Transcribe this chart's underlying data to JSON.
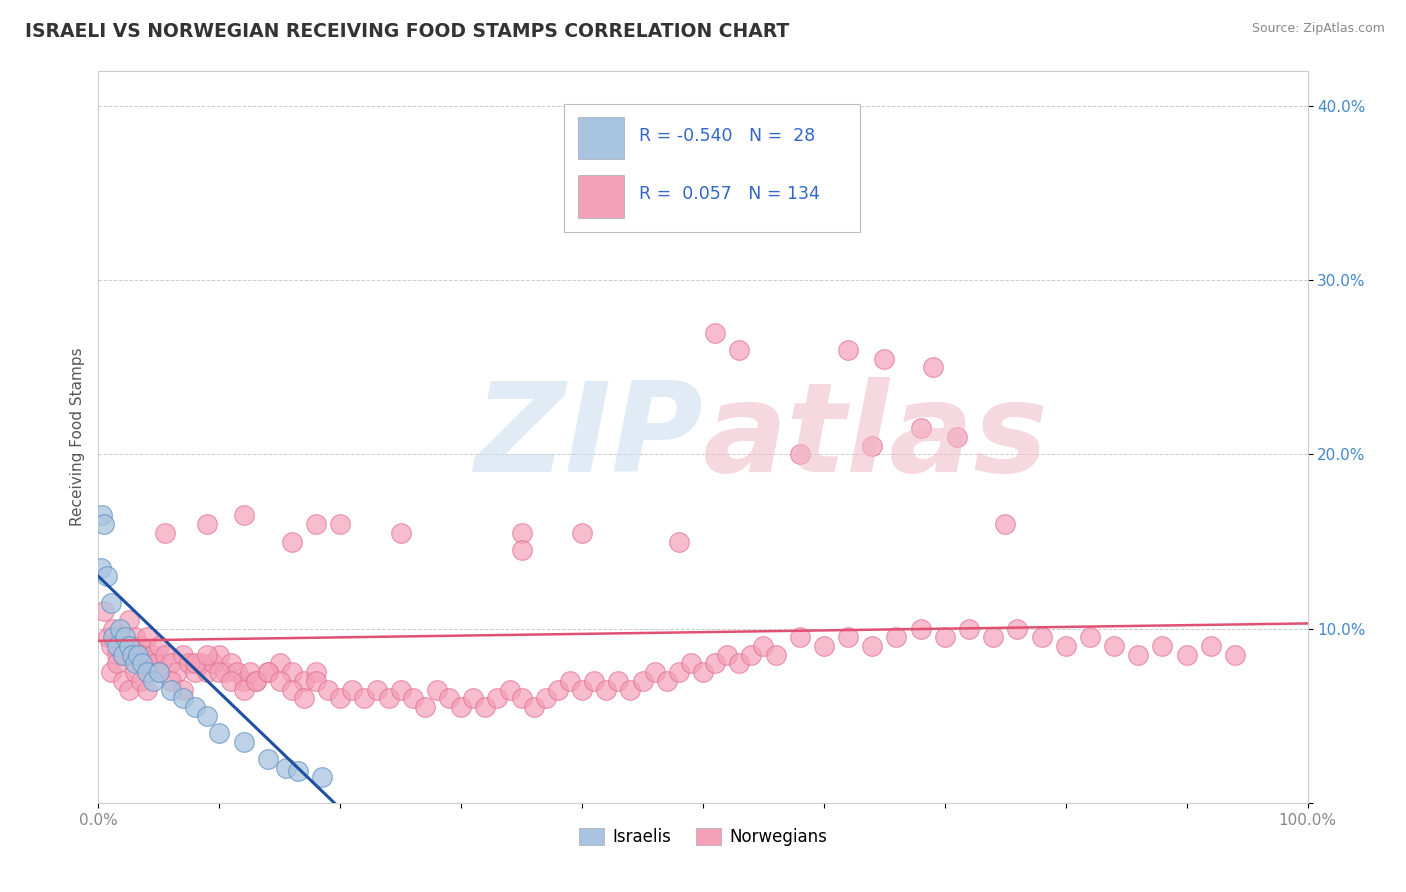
{
  "title": "ISRAELI VS NORWEGIAN RECEIVING FOOD STAMPS CORRELATION CHART",
  "source": "Source: ZipAtlas.com",
  "ylabel": "Receiving Food Stamps",
  "xlim": [
    0.0,
    1.0
  ],
  "ylim": [
    0.0,
    0.42
  ],
  "x_ticks": [
    0.0,
    0.1,
    0.2,
    0.3,
    0.4,
    0.5,
    0.6,
    0.7,
    0.8,
    0.9,
    1.0
  ],
  "x_tick_labels": [
    "0.0%",
    "",
    "",
    "",
    "",
    "",
    "",
    "",
    "",
    "",
    "100.0%"
  ],
  "y_ticks": [
    0.0,
    0.1,
    0.2,
    0.3,
    0.4
  ],
  "y_tick_labels": [
    "",
    "10.0%",
    "20.0%",
    "30.0%",
    "40.0%"
  ],
  "israeli_R": -0.54,
  "israeli_N": 28,
  "norwegian_R": 0.057,
  "norwegian_N": 134,
  "israeli_color": "#a8c4e0",
  "norwegian_color": "#f4a0b8",
  "israeli_edge_color": "#6090c0",
  "norwegian_edge_color": "#e07090",
  "israeli_line_color": "#2050a0",
  "norwegian_line_color": "#e05070",
  "legend_label_israeli": "Israelis",
  "legend_label_norwegian": "Norwegians",
  "background_color": "#ffffff",
  "grid_color": "#cccccc",
  "title_color": "#333333",
  "source_color": "#888888",
  "tick_color_y": "#4488cc",
  "tick_color_x": "#888888",
  "ylabel_color": "#555555",
  "isr_line_x0": 0.0,
  "isr_line_y0": 0.13,
  "isr_line_x1": 0.195,
  "isr_line_y1": 0.0,
  "nor_line_x0": 0.0,
  "nor_line_y0": 0.093,
  "nor_line_x1": 1.0,
  "nor_line_y1": 0.103
}
